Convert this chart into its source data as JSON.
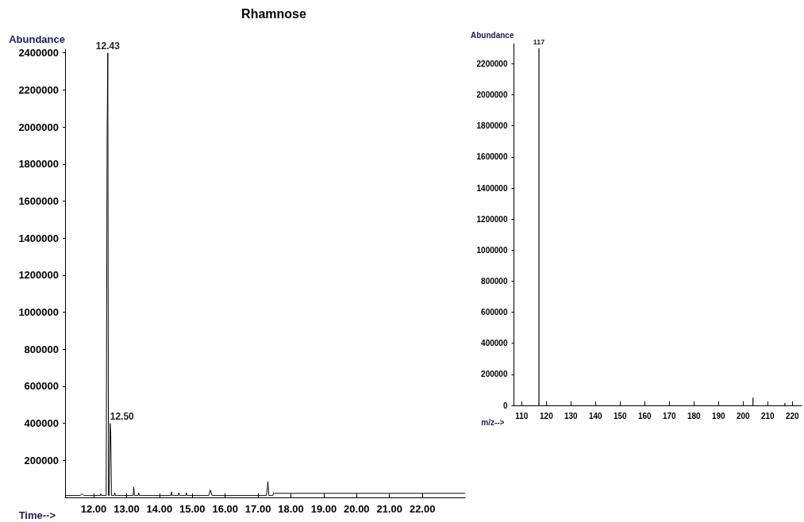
{
  "chart_data": [
    {
      "type": "line",
      "title": "Rhamnose",
      "xlabel": "Time-->",
      "ylabel": "Abundance",
      "x": [
        11.13,
        11.6,
        11.65,
        11.7,
        12.2,
        12.22,
        12.24,
        12.38,
        12.41,
        12.43,
        12.45,
        12.47,
        12.5,
        12.52,
        12.54,
        12.62,
        12.64,
        12.66,
        13.2,
        13.22,
        13.24,
        13.35,
        13.37,
        13.39,
        14.35,
        14.37,
        14.39,
        14.57,
        14.59,
        14.61,
        14.8,
        14.82,
        14.84,
        15.5,
        15.55,
        15.6,
        17.25,
        17.28,
        17.3,
        17.33,
        17.45,
        17.47,
        17.5,
        23.3
      ],
      "series": [
        {
          "color": "#000000",
          "values": [
            10000,
            10000,
            20000,
            10000,
            10000,
            20000,
            10000,
            10000,
            1970000,
            2400000,
            10000,
            10000,
            400000,
            340000,
            10000,
            10000,
            25000,
            10000,
            10000,
            55000,
            10000,
            10000,
            25000,
            10000,
            10000,
            30000,
            10000,
            10000,
            25000,
            10000,
            10000,
            25000,
            10000,
            10000,
            40000,
            10000,
            10000,
            40000,
            85000,
            10000,
            10000,
            25000,
            22000,
            22000
          ]
        }
      ],
      "xlim": [
        11.13,
        23.3
      ],
      "ylim": [
        0,
        2420000
      ],
      "xticks": [
        {
          "value": 12,
          "label": "12.00"
        },
        {
          "value": 13,
          "label": "13.00"
        },
        {
          "value": 14,
          "label": "14.00"
        },
        {
          "value": 15,
          "label": "15.00"
        },
        {
          "value": 16,
          "label": "16.00"
        },
        {
          "value": 17,
          "label": "17.00"
        },
        {
          "value": 18,
          "label": "18.00"
        },
        {
          "value": 19,
          "label": "19.00"
        },
        {
          "value": 20,
          "label": "20.00"
        },
        {
          "value": 21,
          "label": "21.00"
        },
        {
          "value": 22,
          "label": "22.00"
        }
      ],
      "yticks": [
        200000,
        400000,
        600000,
        800000,
        1000000,
        1200000,
        1400000,
        1600000,
        1800000,
        2000000,
        2200000,
        2400000
      ],
      "annotations": [
        {
          "text": "12.43",
          "x": 12.43,
          "y": 2400000
        },
        {
          "text": "12.50",
          "x": 12.5,
          "y": 400000
        }
      ],
      "grid": false,
      "marker": "none",
      "line_style": "solid"
    },
    {
      "type": "bar",
      "xlabel": "m/z-->",
      "ylabel": "Abundance",
      "x": [
        117,
        204,
        217
      ],
      "series": [
        {
          "color": "#333333",
          "values": [
            2300000,
            50000,
            15000
          ]
        }
      ],
      "xlim": [
        106.8,
        223.8
      ],
      "ylim": [
        0,
        2330000
      ],
      "xticks": [
        110,
        120,
        130,
        140,
        150,
        160,
        170,
        180,
        190,
        200,
        210,
        220
      ],
      "yticks": [
        0,
        200000,
        400000,
        600000,
        800000,
        1000000,
        1200000,
        1400000,
        1600000,
        1800000,
        2000000,
        2200000
      ],
      "annotations": [
        {
          "text": "117",
          "x": 117,
          "y": 2300000
        }
      ],
      "grid": false
    }
  ]
}
